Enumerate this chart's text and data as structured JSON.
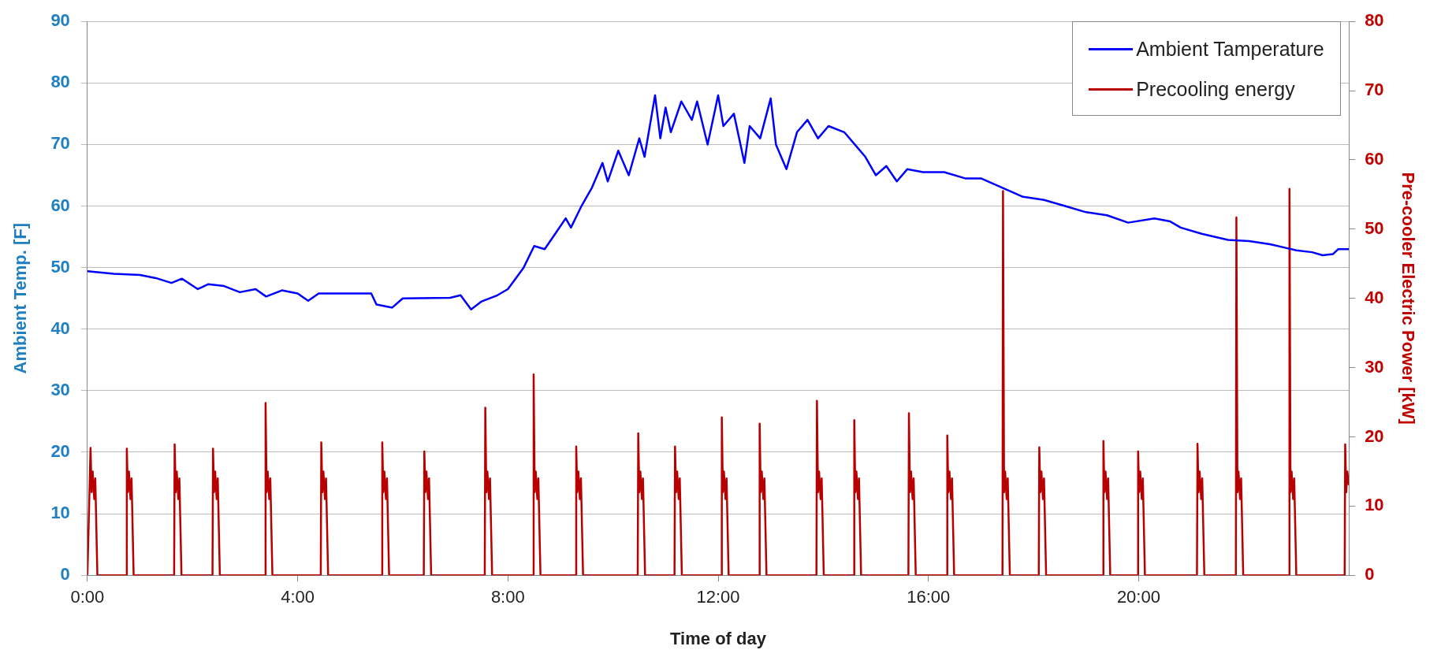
{
  "chart_data": {
    "type": "line",
    "xlabel": "Time of day",
    "ylabel": "Ambient Temp. [F]",
    "y2label": "Pre-cooler Electric Power [kW]",
    "xlim": [
      0,
      24
    ],
    "xticks": [
      {
        "value": 0,
        "label": "0:00"
      },
      {
        "value": 4,
        "label": "4:00"
      },
      {
        "value": 8,
        "label": "8:00"
      },
      {
        "value": 12,
        "label": "12:00"
      },
      {
        "value": 16,
        "label": "16:00"
      },
      {
        "value": 20,
        "label": "20:00"
      }
    ],
    "ylim": [
      0,
      90
    ],
    "yticks": [
      0,
      10,
      20,
      30,
      40,
      50,
      60,
      70,
      80,
      90
    ],
    "y2lim": [
      0,
      80
    ],
    "y2ticks": [
      0,
      10,
      20,
      30,
      40,
      50,
      60,
      70,
      80
    ],
    "grid": "y",
    "legend": "top right",
    "marker": "none",
    "line_style": "solid",
    "series": [
      {
        "name": "Ambient Tamperature",
        "color": "#0000ff",
        "x": [
          0,
          0.5,
          1.0,
          1.3,
          1.6,
          1.8,
          2.1,
          2.3,
          2.6,
          2.9,
          3.2,
          3.4,
          3.7,
          4.0,
          4.2,
          4.4,
          5.0,
          5.4,
          5.5,
          5.8,
          6.0,
          6.9,
          7.1,
          7.3,
          7.5,
          7.8,
          8.0,
          8.3,
          8.5,
          8.7,
          8.9,
          9.1,
          9.2,
          9.4,
          9.6,
          9.8,
          9.9,
          10.1,
          10.3,
          10.5,
          10.6,
          10.8,
          10.9,
          11.0,
          11.1,
          11.3,
          11.5,
          11.6,
          11.8,
          12.0,
          12.1,
          12.3,
          12.5,
          12.6,
          12.8,
          13.0,
          13.1,
          13.3,
          13.5,
          13.7,
          13.9,
          14.1,
          14.4,
          14.6,
          14.8,
          15.0,
          15.2,
          15.4,
          15.6,
          15.9,
          16.3,
          16.7,
          17.0,
          17.4,
          17.8,
          18.2,
          18.6,
          19.0,
          19.4,
          19.8,
          20.3,
          20.6,
          20.8,
          21.2,
          21.7,
          22.1,
          22.5,
          22.8,
          23.0,
          23.3,
          23.5,
          23.7,
          23.8,
          24.0
        ],
        "values": [
          49.4,
          49,
          48.8,
          48.3,
          47.5,
          48.2,
          46.5,
          47.3,
          47,
          46,
          46.5,
          45.3,
          46.3,
          45.8,
          44.6,
          45.8,
          45.8,
          45.8,
          44,
          43.5,
          45,
          45.1,
          45.5,
          43.2,
          44.5,
          45.5,
          46.5,
          50,
          53.5,
          53,
          55.5,
          58,
          56.5,
          60,
          63,
          67,
          64,
          69,
          65,
          71,
          68,
          78,
          71,
          76,
          72,
          77,
          74,
          77,
          70,
          78,
          73,
          75,
          67,
          73,
          71,
          77.5,
          70,
          66,
          72,
          74,
          71,
          73,
          72,
          70,
          68,
          65,
          66.5,
          64,
          66,
          65.5,
          65.5,
          64.5,
          64.5,
          63,
          61.5,
          61,
          60,
          59,
          58.5,
          57.3,
          58,
          57.5,
          56.5,
          55.5,
          54.5,
          54.3,
          53.8,
          53.2,
          52.8,
          52.5,
          52,
          52.2,
          53,
          53
        ]
      },
      {
        "name": "Precooling energy",
        "color": "#b80000",
        "axis": "y2",
        "x": [
          0,
          0.06,
          0.08,
          0.1,
          0.13,
          0.15,
          0.19,
          0.74,
          0.75,
          0.77,
          0.79,
          0.82,
          0.84,
          0.88,
          1.65,
          1.66,
          1.68,
          1.7,
          1.73,
          1.75,
          1.79,
          2.38,
          2.39,
          2.41,
          2.43,
          2.46,
          2.48,
          2.52,
          3.38,
          3.39,
          3.41,
          3.43,
          3.46,
          3.48,
          3.52,
          4.44,
          4.45,
          4.47,
          4.49,
          4.52,
          4.54,
          4.58,
          5.6,
          5.61,
          5.63,
          5.65,
          5.68,
          5.7,
          5.74,
          6.4,
          6.41,
          6.43,
          6.45,
          6.48,
          6.5,
          6.54,
          7.56,
          7.57,
          7.59,
          7.61,
          7.64,
          7.66,
          7.7,
          8.48,
          8.49,
          8.51,
          8.53,
          8.56,
          8.58,
          8.62,
          9.29,
          9.3,
          9.32,
          9.34,
          9.37,
          9.39,
          9.43,
          10.47,
          10.48,
          10.5,
          10.52,
          10.55,
          10.57,
          10.61,
          11.17,
          11.18,
          11.2,
          11.22,
          11.25,
          11.27,
          11.31,
          12.06,
          12.07,
          12.09,
          12.11,
          12.14,
          12.16,
          12.2,
          12.78,
          12.79,
          12.81,
          12.83,
          12.86,
          12.88,
          12.92,
          13.87,
          13.88,
          13.9,
          13.92,
          13.95,
          13.97,
          14.01,
          14.58,
          14.59,
          14.61,
          14.63,
          14.66,
          14.68,
          14.72,
          15.62,
          15.63,
          15.65,
          15.67,
          15.7,
          15.72,
          15.76,
          16.35,
          16.36,
          16.38,
          16.4,
          16.43,
          16.45,
          16.49,
          17.41,
          17.42,
          17.44,
          17.46,
          17.49,
          17.51,
          17.55,
          18.1,
          18.11,
          18.13,
          18.15,
          18.18,
          18.2,
          18.24,
          19.32,
          19.33,
          19.35,
          19.37,
          19.4,
          19.42,
          19.46,
          19.98,
          19.99,
          20.01,
          20.03,
          20.06,
          20.08,
          20.12,
          21.11,
          21.12,
          21.14,
          21.16,
          21.19,
          21.21,
          21.25,
          21.85,
          21.86,
          21.88,
          21.9,
          21.93,
          21.95,
          21.99,
          22.86,
          22.87,
          22.89,
          22.91,
          22.94,
          22.96,
          23.0,
          23.92,
          23.93,
          23.95,
          23.97,
          24.0
        ],
        "values": [
          0,
          18.4,
          12,
          15,
          11,
          14,
          0,
          0,
          18.3,
          12,
          15,
          11,
          14,
          0,
          0,
          18.9,
          12,
          15,
          11,
          14,
          0,
          0,
          18.3,
          12,
          15,
          11,
          14,
          0,
          0,
          24.9,
          12,
          15,
          11,
          14,
          0,
          0,
          19.2,
          12,
          15,
          11,
          14,
          0,
          0,
          19.2,
          12,
          15,
          11,
          14,
          0,
          0,
          17.9,
          12,
          15,
          11,
          14,
          0,
          0,
          24.2,
          12,
          15,
          11,
          14,
          0,
          0,
          29,
          12,
          15,
          11,
          14,
          0,
          0,
          18.6,
          12,
          15,
          11,
          14,
          0,
          0,
          20.5,
          12,
          15,
          11,
          14,
          0,
          0,
          18.6,
          12,
          15,
          11,
          14,
          0,
          0,
          22.8,
          12,
          15,
          11,
          14,
          0,
          0,
          21.9,
          12,
          15,
          11,
          14,
          0,
          0,
          25.2,
          12,
          15,
          11,
          14,
          0,
          0,
          22.4,
          12,
          15,
          11,
          14,
          0,
          0,
          23.4,
          12,
          15,
          11,
          14,
          0,
          0,
          20.2,
          12,
          15,
          11,
          14,
          0,
          0,
          55.5,
          12,
          15,
          11,
          14,
          0,
          0,
          18.5,
          12,
          15,
          11,
          14,
          0,
          0,
          19.4,
          12,
          15,
          11,
          14,
          0,
          0,
          17.9,
          12,
          15,
          11,
          14,
          0,
          0,
          19,
          12,
          15,
          11,
          14,
          0,
          0,
          51.7,
          12,
          15,
          11,
          14,
          0,
          0,
          55.8,
          12,
          15,
          11,
          14,
          0,
          0,
          18.9,
          12,
          15,
          13
        ]
      }
    ]
  }
}
